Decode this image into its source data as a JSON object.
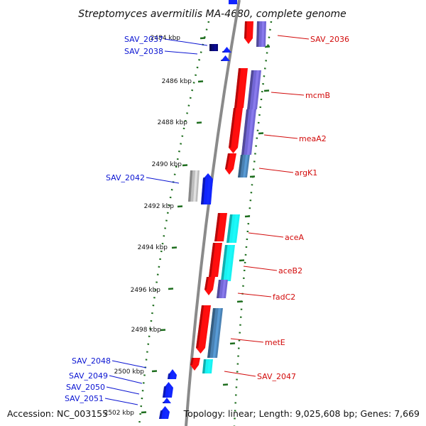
{
  "title": "Streptomyces avermitilis MA-4680, complete genome",
  "footer": {
    "accession": "Accession: NC_003155",
    "summary": "Topology: linear; Length: 9,025,608 bp; Genes: 7,669"
  },
  "colors": {
    "forward_label": "#0a14d2",
    "reverse_label": "#d20a0a",
    "tick": "#1e6e1e",
    "backbone": "#8a8a8a",
    "red": "#ff0d0d",
    "purple": "#7367d6",
    "cyan": "#18f2f2",
    "steel": "#4a82b4",
    "blue": "#1024ff",
    "navy": "#0a0a7a",
    "grey": "#bdbdbd"
  },
  "ticks": [
    {
      "label": "2484 kbp"
    },
    {
      "label": "2486 kbp"
    },
    {
      "label": "2488 kbp"
    },
    {
      "label": "2490 kbp"
    },
    {
      "label": "2492 kbp"
    },
    {
      "label": "2494 kbp"
    },
    {
      "label": "2496 kbp"
    },
    {
      "label": "2498 kbp"
    },
    {
      "label": "2500 kbp"
    },
    {
      "label": "2502 kbp"
    }
  ],
  "genes_forward": [
    {
      "name": "SAV_2037"
    },
    {
      "name": "SAV_2038"
    },
    {
      "name": "SAV_2042"
    },
    {
      "name": "SAV_2048"
    },
    {
      "name": "SAV_2049"
    },
    {
      "name": "SAV_2050"
    },
    {
      "name": "SAV_2051"
    }
  ],
  "genes_reverse": [
    {
      "name": "SAV_2036"
    },
    {
      "name": "mcmB"
    },
    {
      "name": "meaA2"
    },
    {
      "name": "argK1"
    },
    {
      "name": "aceA"
    },
    {
      "name": "aceB2"
    },
    {
      "name": "fadC2"
    },
    {
      "name": "metE"
    },
    {
      "name": "SAV_2047"
    }
  ]
}
